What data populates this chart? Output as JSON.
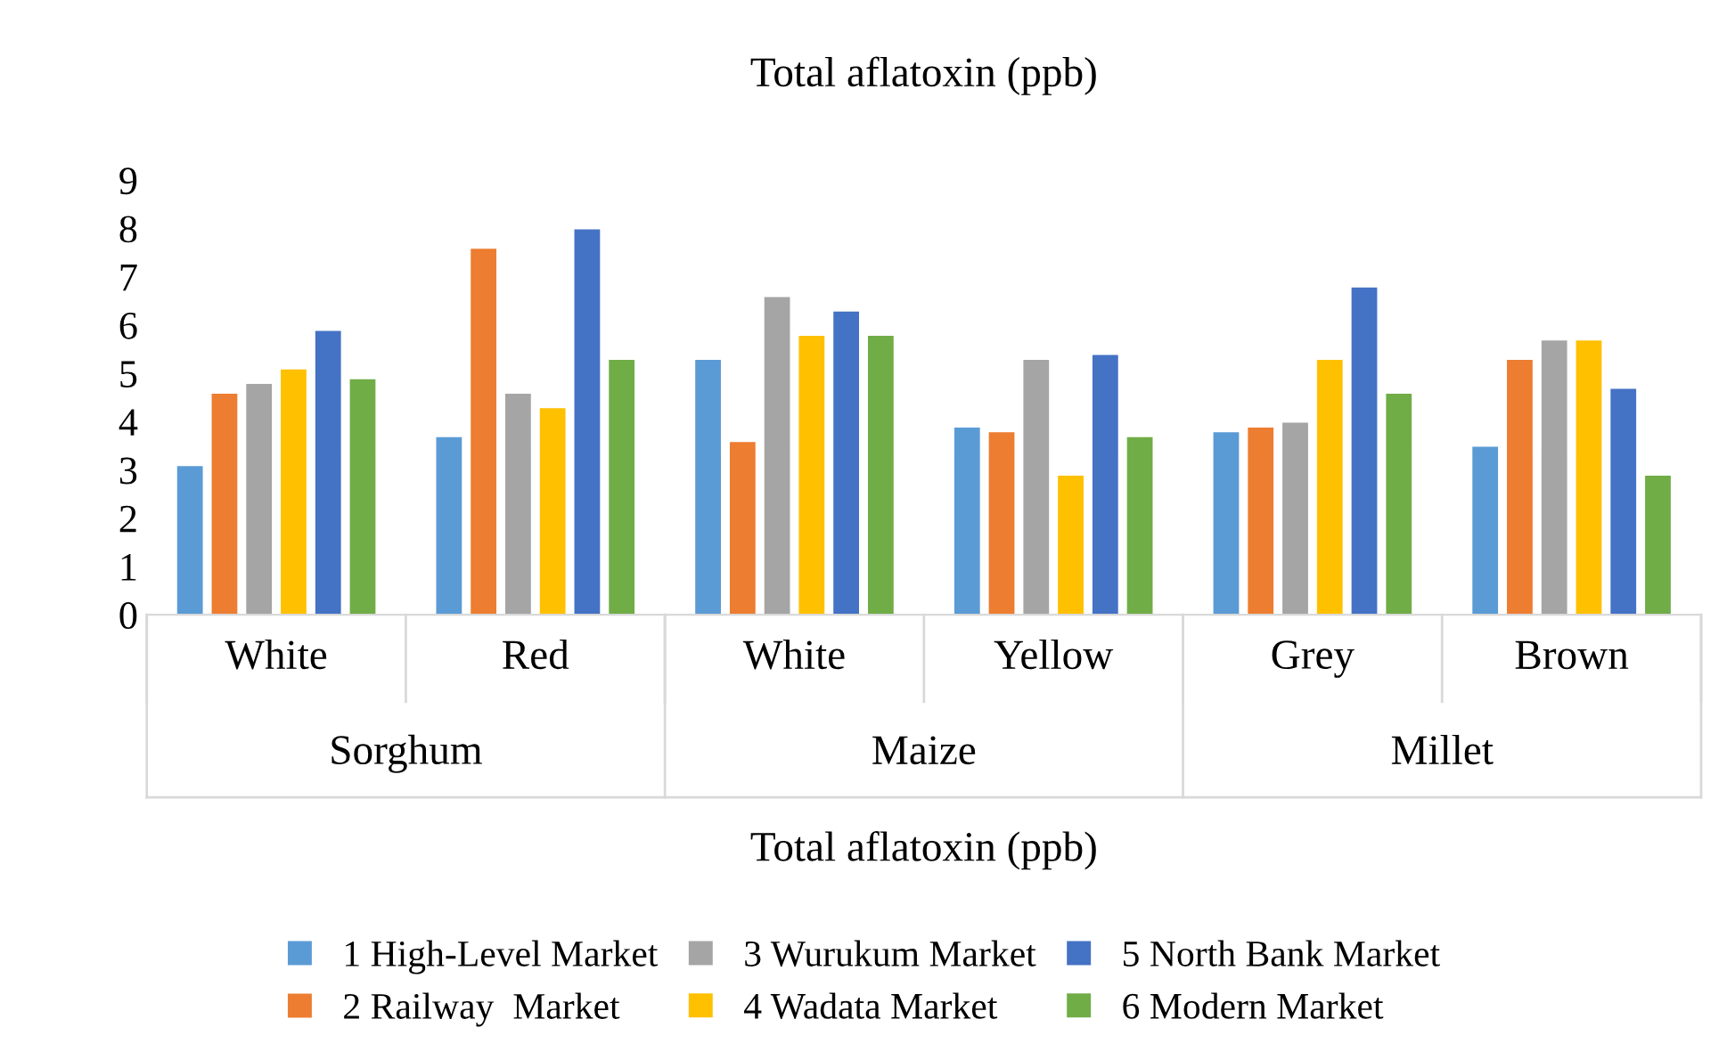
{
  "chart_data": {
    "type": "bar",
    "title": "Total aflatoxin (ppb)",
    "xlabel": "Total aflatoxin (ppb)",
    "categories": [
      "White",
      "Red",
      "White",
      "Yellow",
      "Grey",
      "Brown"
    ],
    "annotations": [
      "Sorghum",
      "Maize",
      "Millet"
    ],
    "series": [
      {
        "name": "1 High-Level Market",
        "color": "#5b9bd5",
        "values": [
          3.1,
          3.7,
          5.3,
          3.9,
          3.8,
          3.5
        ]
      },
      {
        "name": "2 Railway  Market",
        "color": "#ed7d31",
        "values": [
          4.6,
          7.6,
          3.6,
          3.8,
          3.9,
          5.3
        ]
      },
      {
        "name": "3 Wurukum Market",
        "color": "#a5a5a5",
        "values": [
          4.8,
          4.6,
          6.6,
          5.3,
          4.0,
          5.7
        ]
      },
      {
        "name": "4 Wadata Market",
        "color": "#ffc000",
        "values": [
          5.1,
          4.3,
          5.8,
          2.9,
          5.3,
          5.7
        ]
      },
      {
        "name": "5 North Bank Market",
        "color": "#4472c4",
        "values": [
          5.9,
          8.0,
          6.3,
          5.4,
          6.8,
          4.7
        ]
      },
      {
        "name": "6 Modern Market",
        "color": "#70ad47",
        "values": [
          4.9,
          5.3,
          5.8,
          3.7,
          4.6,
          2.9
        ]
      }
    ],
    "ylim": [
      0,
      9
    ],
    "yticks": [
      0,
      1,
      2,
      3,
      4,
      5,
      6,
      7,
      8,
      9
    ],
    "grid": false,
    "legend": "bottom"
  }
}
